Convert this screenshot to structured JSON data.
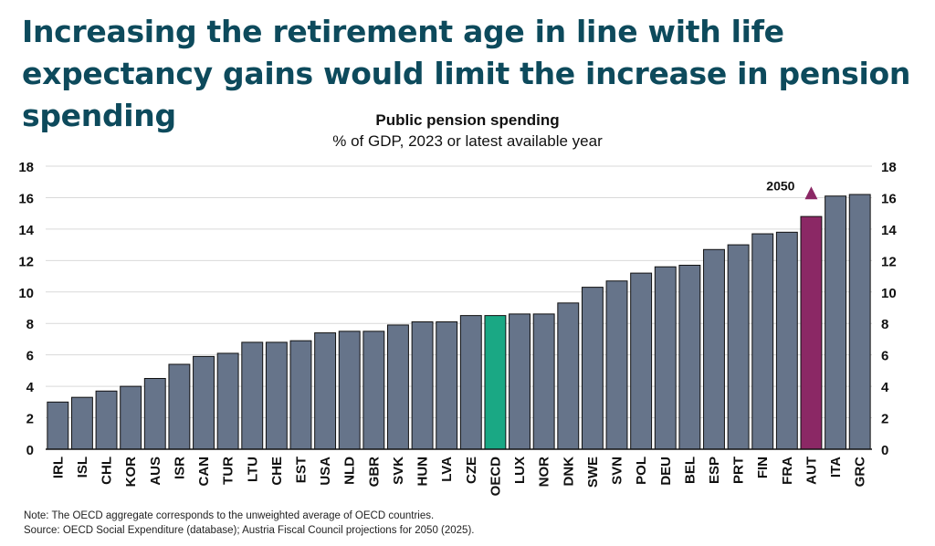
{
  "headline": "Increasing the retirement age in line with life expectancy gains would limit the increase in pension spending",
  "note": "Note: The OECD aggregate corresponds to the unweighted average of OECD countries.",
  "source": "Source: OECD Social Expenditure (database); Austria Fiscal Council projections for 2050 (2025).",
  "colors": {
    "bar": "#66748a",
    "highlight_oecd": "#1aa884",
    "highlight_aut": "#8b2865",
    "marker_2050": "#8b2865"
  },
  "chart_data": {
    "type": "bar",
    "title": "Public pension spending",
    "subtitle": "% of GDP, 2023 or latest available year",
    "xlabel": "",
    "ylabel": "",
    "ylim": [
      0,
      18
    ],
    "yticks": [
      0,
      2,
      4,
      6,
      8,
      10,
      12,
      14,
      16,
      18
    ],
    "grid": true,
    "categories": [
      "IRL",
      "ISL",
      "CHL",
      "KOR",
      "AUS",
      "ISR",
      "CAN",
      "TUR",
      "LTU",
      "CHE",
      "EST",
      "USA",
      "NLD",
      "GBR",
      "SVK",
      "HUN",
      "LVA",
      "CZE",
      "OECD",
      "LUX",
      "NOR",
      "DNK",
      "SWE",
      "SVN",
      "POL",
      "DEU",
      "BEL",
      "ESP",
      "PRT",
      "FIN",
      "FRA",
      "AUT",
      "ITA",
      "GRC"
    ],
    "values": [
      3.0,
      3.3,
      3.7,
      4.0,
      4.5,
      5.4,
      5.9,
      6.1,
      6.8,
      6.8,
      6.9,
      7.4,
      7.5,
      7.5,
      7.9,
      8.1,
      8.1,
      8.5,
      8.5,
      8.6,
      8.6,
      9.3,
      10.3,
      10.7,
      11.2,
      11.6,
      11.7,
      12.7,
      13.0,
      13.7,
      13.8,
      14.8,
      16.1,
      16.2
    ],
    "highlights": {
      "OECD": "highlight_oecd",
      "AUT": "highlight_aut"
    },
    "annotations": [
      {
        "category": "AUT",
        "label": "2050",
        "value": 16.3,
        "marker": "triangle"
      }
    ]
  }
}
